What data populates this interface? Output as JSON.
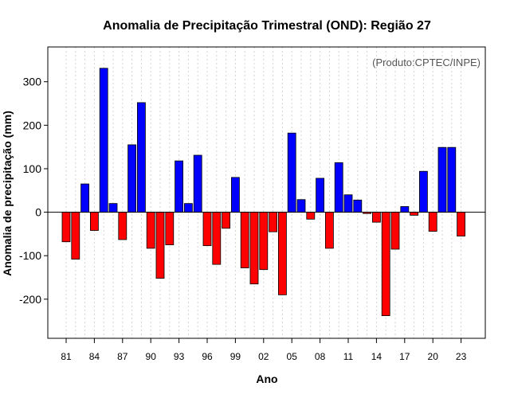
{
  "chart_data": {
    "type": "bar",
    "title": "Anomalia de Precipitação Trimestral (OND): Região 27",
    "xlabel": "Ano",
    "ylabel": "Anomalia de precipitação (mm)",
    "credit": "(Produto:CPTEC/INPE)",
    "ylim": [
      -290,
      380
    ],
    "yticks": [
      -200,
      -100,
      0,
      100,
      200,
      300
    ],
    "positive_color": "#0000ff",
    "negative_color": "#ff0000",
    "grid": true,
    "categories": [
      "81",
      "82",
      "83",
      "84",
      "85",
      "86",
      "87",
      "88",
      "89",
      "90",
      "91",
      "92",
      "93",
      "94",
      "95",
      "96",
      "97",
      "98",
      "99",
      "00",
      "01",
      "02",
      "03",
      "04",
      "05",
      "06",
      "07",
      "08",
      "09",
      "10",
      "11",
      "12",
      "13",
      "14",
      "15",
      "16",
      "17",
      "18",
      "19",
      "20",
      "21",
      "22",
      "23"
    ],
    "xtick_labels": [
      "81",
      "84",
      "87",
      "90",
      "93",
      "96",
      "99",
      "02",
      "05",
      "08",
      "11",
      "14",
      "17",
      "20",
      "23"
    ],
    "values": [
      -68,
      -108,
      65,
      -42,
      331,
      20,
      -63,
      155,
      252,
      -83,
      -152,
      -75,
      118,
      20,
      131,
      -77,
      -120,
      -37,
      80,
      -128,
      -165,
      -132,
      -45,
      -190,
      182,
      29,
      -16,
      78,
      -83,
      114,
      40,
      28,
      -3,
      -23,
      -238,
      -85,
      13,
      -7,
      94,
      -44,
      149,
      149,
      -55
    ]
  }
}
